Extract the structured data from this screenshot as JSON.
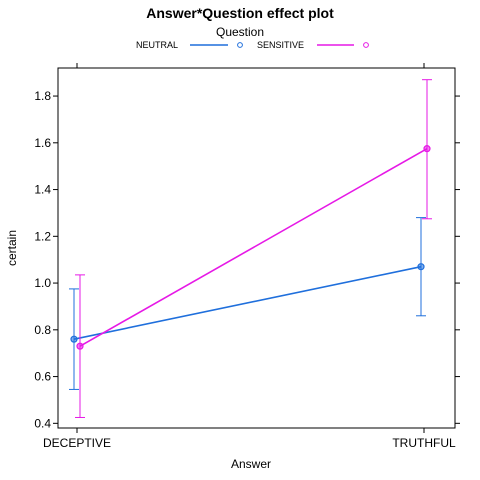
{
  "chart_data": {
    "type": "line",
    "title": "Answer*Question effect plot",
    "xlabel": "Answer",
    "ylabel": "certain",
    "categories": [
      "DECEPTIVE",
      "TRUTHFUL"
    ],
    "ylim": [
      0.38,
      1.92
    ],
    "yticks": [
      0.4,
      0.6,
      0.8,
      1.0,
      1.2,
      1.4,
      1.6,
      1.8
    ],
    "ytick_labels": [
      "0.4",
      "0.6",
      "0.8",
      "1.0",
      "1.2",
      "1.4",
      "1.6",
      "1.8"
    ],
    "grid": false,
    "legend": {
      "title": "Question",
      "placement": "top"
    },
    "series": [
      {
        "name": "NEUTRAL",
        "color": "#1f6fdc",
        "values": [
          0.76,
          1.07
        ],
        "lower": [
          0.545,
          0.86
        ],
        "upper": [
          0.975,
          1.28
        ]
      },
      {
        "name": "SENSITIVE",
        "color": "#e619e6",
        "values": [
          0.73,
          1.575
        ],
        "lower": [
          0.425,
          1.275
        ],
        "upper": [
          1.035,
          1.87
        ]
      }
    ]
  }
}
